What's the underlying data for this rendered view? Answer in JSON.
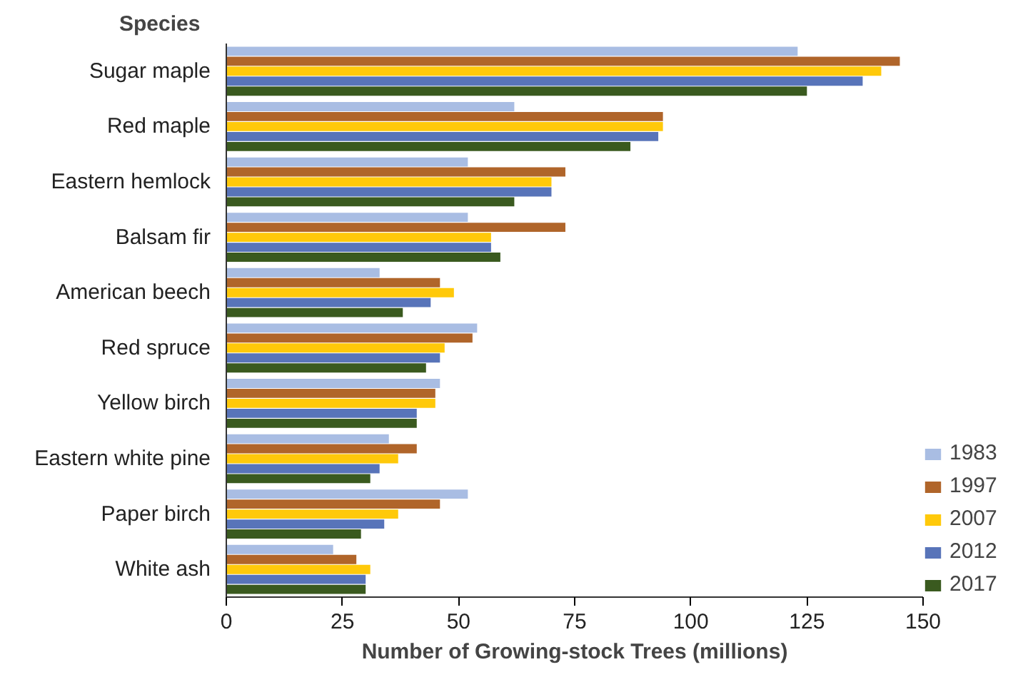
{
  "chart_data": {
    "type": "bar",
    "orientation": "horizontal",
    "xlabel": "Number of Growing-stock Trees (millions)",
    "ylabel": "Species",
    "categories": [
      "Sugar maple",
      "Red maple",
      "Eastern hemlock",
      "Balsam fir",
      "American beech",
      "Red spruce",
      "Yellow birch",
      "Eastern white pine",
      "Paper birch",
      "White ash"
    ],
    "series": [
      {
        "name": "1983",
        "color": "#a9bde3",
        "values": [
          123,
          62,
          52,
          52,
          33,
          54,
          46,
          35,
          52,
          23
        ]
      },
      {
        "name": "1997",
        "color": "#b0652a",
        "values": [
          145,
          94,
          73,
          73,
          46,
          53,
          45,
          41,
          46,
          28
        ]
      },
      {
        "name": "2007",
        "color": "#ffc90a",
        "values": [
          141,
          94,
          70,
          57,
          49,
          47,
          45,
          37,
          37,
          31
        ]
      },
      {
        "name": "2012",
        "color": "#5874b9",
        "values": [
          137,
          93,
          70,
          57,
          44,
          46,
          41,
          33,
          34,
          30
        ]
      },
      {
        "name": "2017",
        "color": "#3a5a1f",
        "values": [
          125,
          87,
          62,
          59,
          38,
          43,
          41,
          31,
          29,
          30
        ]
      }
    ],
    "xlim": [
      0,
      150
    ],
    "xticks": [
      0,
      25,
      50,
      75,
      100,
      125,
      150
    ],
    "grid": false,
    "legend": "bottom right"
  }
}
